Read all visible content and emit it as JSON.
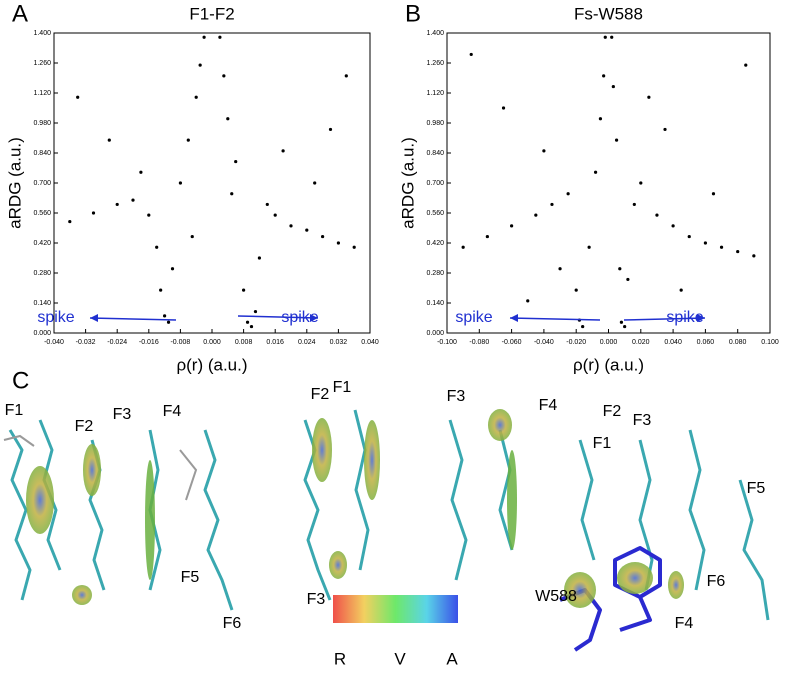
{
  "chart_data": [
    {
      "type": "scatter",
      "panel": "A",
      "title": "F1-F2",
      "xlabel": "ρ(r) (a.u.)",
      "ylabel": "aRDG (a.u.)",
      "color": "#000000",
      "xlim": [
        -0.04,
        0.04
      ],
      "ylim": [
        0,
        1.4
      ],
      "xticks": [
        {
          "value": -0.04,
          "label": "-0.040"
        },
        {
          "value": -0.032,
          "label": "-0.032"
        },
        {
          "value": -0.024,
          "label": "-0.024"
        },
        {
          "value": -0.016,
          "label": "-0.016"
        },
        {
          "value": -0.008,
          "label": "-0.008"
        },
        {
          "value": 0,
          "label": "0.000"
        },
        {
          "value": 0.008,
          "label": "0.008"
        },
        {
          "value": 0.016,
          "label": "0.016"
        },
        {
          "value": 0.024,
          "label": "0.024"
        },
        {
          "value": 0.032,
          "label": "0.032"
        },
        {
          "value": 0.04,
          "label": "0.040"
        }
      ],
      "yticks": [
        {
          "value": 0,
          "label": "0.000"
        },
        {
          "value": 0.14,
          "label": "0.140"
        },
        {
          "value": 0.28,
          "label": "0.280"
        },
        {
          "value": 0.42,
          "label": "0.420"
        },
        {
          "value": 0.56,
          "label": "0.560"
        },
        {
          "value": 0.7,
          "label": "0.700"
        },
        {
          "value": 0.84,
          "label": "0.840"
        },
        {
          "value": 0.98,
          "label": "0.980"
        },
        {
          "value": 1.12,
          "label": "1.120"
        },
        {
          "value": 1.26,
          "label": "1.260"
        },
        {
          "value": 1.4,
          "label": "1.400"
        }
      ],
      "x": [
        -0.036,
        -0.03,
        -0.024,
        -0.02,
        -0.016,
        -0.013,
        -0.012,
        -0.011,
        -0.01,
        -0.008,
        -0.006,
        -0.004,
        -0.003,
        -0.002,
        0.002,
        0.003,
        0.004,
        0.006,
        0.008,
        0.009,
        0.01,
        0.011,
        0.012,
        0.014,
        0.016,
        0.02,
        0.024,
        0.028,
        0.032,
        0.036,
        -0.034,
        -0.026,
        -0.018,
        -0.014,
        0.018,
        0.026,
        0.034,
        0.005,
        -0.005,
        0.03
      ],
      "y": [
        0.52,
        0.56,
        0.6,
        0.62,
        0.55,
        0.2,
        0.08,
        0.05,
        0.3,
        0.7,
        0.9,
        1.1,
        1.25,
        1.38,
        1.38,
        1.2,
        1.0,
        0.8,
        0.2,
        0.05,
        0.03,
        0.1,
        0.35,
        0.6,
        0.55,
        0.5,
        0.48,
        0.45,
        0.42,
        0.4,
        1.1,
        0.9,
        0.75,
        0.4,
        0.85,
        0.7,
        1.2,
        0.65,
        0.45,
        0.95
      ],
      "annotations": [
        "spike",
        "spike"
      ]
    },
    {
      "type": "scatter",
      "panel": "B",
      "title": "Fs-W588",
      "xlabel": "ρ(r) (a.u.)",
      "ylabel": "aRDG (a.u.)",
      "color": "#000000",
      "xlim": [
        -0.1,
        0.1
      ],
      "ylim": [
        0,
        1.4
      ],
      "xticks": [
        {
          "value": -0.1,
          "label": "-0.100"
        },
        {
          "value": -0.08,
          "label": "-0.080"
        },
        {
          "value": -0.06,
          "label": "-0.060"
        },
        {
          "value": -0.04,
          "label": "-0.040"
        },
        {
          "value": -0.02,
          "label": "-0.020"
        },
        {
          "value": 0,
          "label": "0.000"
        },
        {
          "value": 0.02,
          "label": "0.020"
        },
        {
          "value": 0.04,
          "label": "0.040"
        },
        {
          "value": 0.06,
          "label": "0.060"
        },
        {
          "value": 0.08,
          "label": "0.080"
        },
        {
          "value": 0.1,
          "label": "0.100"
        }
      ],
      "yticks": [
        {
          "value": 0,
          "label": "0.000"
        },
        {
          "value": 0.14,
          "label": "0.140"
        },
        {
          "value": 0.28,
          "label": "0.280"
        },
        {
          "value": 0.42,
          "label": "0.420"
        },
        {
          "value": 0.56,
          "label": "0.560"
        },
        {
          "value": 0.7,
          "label": "0.700"
        },
        {
          "value": 0.84,
          "label": "0.840"
        },
        {
          "value": 0.98,
          "label": "0.980"
        },
        {
          "value": 1.12,
          "label": "1.120"
        },
        {
          "value": 1.26,
          "label": "1.260"
        },
        {
          "value": 1.4,
          "label": "1.400"
        }
      ],
      "x": [
        -0.09,
        -0.075,
        -0.06,
        -0.045,
        -0.035,
        -0.025,
        -0.02,
        -0.018,
        -0.016,
        -0.012,
        -0.008,
        -0.005,
        -0.003,
        -0.002,
        0.002,
        0.003,
        0.005,
        0.007,
        0.008,
        0.01,
        0.012,
        0.016,
        0.02,
        0.03,
        0.04,
        0.05,
        0.06,
        0.07,
        0.08,
        0.09,
        -0.085,
        -0.065,
        -0.04,
        0.035,
        0.065,
        0.085,
        -0.03,
        0.025,
        -0.05,
        0.045
      ],
      "y": [
        0.4,
        0.45,
        0.5,
        0.55,
        0.6,
        0.65,
        0.2,
        0.06,
        0.03,
        0.4,
        0.75,
        1.0,
        1.2,
        1.38,
        1.38,
        1.15,
        0.9,
        0.3,
        0.05,
        0.03,
        0.25,
        0.6,
        0.7,
        0.55,
        0.5,
        0.45,
        0.42,
        0.4,
        0.38,
        0.36,
        1.3,
        1.05,
        0.85,
        0.95,
        0.65,
        1.25,
        0.3,
        1.1,
        0.15,
        0.2
      ],
      "annotations": [
        "spike",
        "spike"
      ]
    }
  ],
  "panel_c": {
    "panel": "C",
    "labels": [
      "F1",
      "F2",
      "F3",
      "F4",
      "F5",
      "F6",
      "F2",
      "F1",
      "F3",
      "F3",
      "F4",
      "F2",
      "F3",
      "F1",
      "F5",
      "W588",
      "F6",
      "F4"
    ],
    "colorbar": [
      "R",
      "V",
      "A"
    ]
  }
}
